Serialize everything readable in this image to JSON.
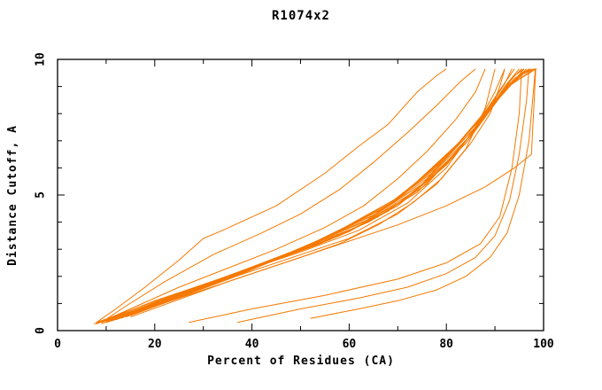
{
  "chart": {
    "title": "R1074x2"
  },
  "chart_data": {
    "type": "line",
    "title": "R1074x2",
    "xlabel": "Percent of Residues (CA)",
    "ylabel": "Distance Cutoff, A",
    "xlim": [
      0,
      100
    ],
    "ylim": [
      0,
      10
    ],
    "x_ticks_major": [
      0,
      20,
      40,
      60,
      80,
      100
    ],
    "x_ticks_minor": [
      10,
      30,
      50,
      70,
      90
    ],
    "y_ticks_major": [
      0,
      5,
      10
    ],
    "y_ticks_minor": [
      1,
      2,
      3,
      4,
      6,
      7,
      8,
      9
    ],
    "grid": false,
    "legend": "none",
    "line_color": "#f57900",
    "axis_color": "#000000",
    "series": [
      {
        "points": [
          [
            8,
            0.3
          ],
          [
            12,
            0.8
          ],
          [
            18,
            1.6
          ],
          [
            25,
            2.6
          ],
          [
            30,
            3.4
          ],
          [
            34,
            3.7
          ],
          [
            45,
            4.6
          ],
          [
            55,
            5.8
          ],
          [
            62,
            6.8
          ],
          [
            68,
            7.6
          ],
          [
            74,
            8.8
          ],
          [
            78,
            9.4
          ],
          [
            80,
            9.65
          ]
        ]
      },
      {
        "points": [
          [
            9,
            0.3
          ],
          [
            14,
            0.9
          ],
          [
            22,
            1.8
          ],
          [
            32,
            2.8
          ],
          [
            42,
            3.6
          ],
          [
            50,
            4.3
          ],
          [
            58,
            5.2
          ],
          [
            65,
            6.2
          ],
          [
            72,
            7.3
          ],
          [
            78,
            8.3
          ],
          [
            83,
            9.2
          ],
          [
            86,
            9.65
          ]
        ]
      },
      {
        "points": [
          [
            8,
            0.25
          ],
          [
            15,
            0.8
          ],
          [
            25,
            1.6
          ],
          [
            35,
            2.3
          ],
          [
            45,
            3.0
          ],
          [
            55,
            3.8
          ],
          [
            63,
            4.6
          ],
          [
            70,
            5.6
          ],
          [
            76,
            6.6
          ],
          [
            82,
            7.8
          ],
          [
            86,
            8.8
          ],
          [
            88,
            9.65
          ]
        ]
      },
      {
        "points": [
          [
            7.5,
            0.25
          ],
          [
            20,
            1.0
          ],
          [
            35,
            1.9
          ],
          [
            50,
            2.8
          ],
          [
            60,
            3.4
          ],
          [
            70,
            4.3
          ],
          [
            78,
            5.4
          ],
          [
            84,
            6.7
          ],
          [
            88,
            8.2
          ],
          [
            90,
            9.65
          ]
        ]
      },
      {
        "points": [
          [
            8,
            0.25
          ],
          [
            20,
            1.1
          ],
          [
            35,
            2.0
          ],
          [
            50,
            2.9
          ],
          [
            62,
            3.7
          ],
          [
            72,
            4.7
          ],
          [
            80,
            6.0
          ],
          [
            86,
            7.5
          ],
          [
            90,
            8.8
          ],
          [
            92,
            9.65
          ]
        ]
      },
      {
        "points": [
          [
            8,
            0.3
          ],
          [
            22,
            1.2
          ],
          [
            38,
            2.2
          ],
          [
            52,
            3.1
          ],
          [
            64,
            4.0
          ],
          [
            74,
            5.1
          ],
          [
            82,
            6.5
          ],
          [
            88,
            8.0
          ],
          [
            92,
            9.1
          ],
          [
            93.5,
            9.65
          ]
        ]
      },
      {
        "points": [
          [
            9,
            0.3
          ],
          [
            24,
            1.3
          ],
          [
            40,
            2.3
          ],
          [
            54,
            3.2
          ],
          [
            66,
            4.2
          ],
          [
            76,
            5.4
          ],
          [
            84,
            7.0
          ],
          [
            90,
            8.6
          ],
          [
            94,
            9.65
          ]
        ]
      },
      {
        "points": [
          [
            9,
            0.25
          ],
          [
            25,
            1.35
          ],
          [
            42,
            2.45
          ],
          [
            56,
            3.35
          ],
          [
            68,
            4.4
          ],
          [
            78,
            5.8
          ],
          [
            86,
            7.4
          ],
          [
            92,
            9.0
          ],
          [
            95,
            9.65
          ]
        ]
      },
      {
        "points": [
          [
            10,
            0.3
          ],
          [
            26,
            1.4
          ],
          [
            44,
            2.55
          ],
          [
            58,
            3.5
          ],
          [
            70,
            4.6
          ],
          [
            80,
            6.1
          ],
          [
            88,
            7.9
          ],
          [
            93,
            9.2
          ],
          [
            95.5,
            9.65
          ]
        ]
      },
      {
        "points": [
          [
            10,
            0.35
          ],
          [
            27,
            1.5
          ],
          [
            45,
            2.65
          ],
          [
            60,
            3.65
          ],
          [
            72,
            4.9
          ],
          [
            82,
            6.5
          ],
          [
            89,
            8.2
          ],
          [
            94,
            9.4
          ],
          [
            96,
            9.65
          ]
        ]
      },
      {
        "points": [
          [
            11,
            0.35
          ],
          [
            28,
            1.55
          ],
          [
            46,
            2.75
          ],
          [
            62,
            3.85
          ],
          [
            74,
            5.2
          ],
          [
            84,
            6.9
          ],
          [
            91,
            8.6
          ],
          [
            96,
            9.65
          ]
        ]
      },
      {
        "points": [
          [
            11,
            0.4
          ],
          [
            29,
            1.6
          ],
          [
            47,
            2.8
          ],
          [
            63,
            4.0
          ],
          [
            75,
            5.4
          ],
          [
            85,
            7.2
          ],
          [
            92,
            8.9
          ],
          [
            96.5,
            9.65
          ]
        ]
      },
      {
        "points": [
          [
            12,
            0.4
          ],
          [
            30,
            1.65
          ],
          [
            48,
            2.9
          ],
          [
            64,
            4.1
          ],
          [
            76,
            5.6
          ],
          [
            86,
            7.5
          ],
          [
            93,
            9.1
          ],
          [
            97,
            9.65
          ]
        ]
      },
      {
        "points": [
          [
            12,
            0.45
          ],
          [
            31,
            1.7
          ],
          [
            49,
            2.95
          ],
          [
            65,
            4.25
          ],
          [
            77,
            5.8
          ],
          [
            87,
            7.7
          ],
          [
            94,
            9.3
          ],
          [
            97.5,
            9.65
          ]
        ]
      },
      {
        "points": [
          [
            13,
            0.45
          ],
          [
            32,
            1.75
          ],
          [
            50,
            3.0
          ],
          [
            66,
            4.35
          ],
          [
            78,
            6.0
          ],
          [
            88,
            8.0
          ],
          [
            95,
            9.4
          ],
          [
            98,
            9.65
          ]
        ]
      },
      {
        "points": [
          [
            13,
            0.5
          ],
          [
            33,
            1.8
          ],
          [
            51,
            3.1
          ],
          [
            67,
            4.5
          ],
          [
            79,
            6.2
          ],
          [
            89,
            8.2
          ],
          [
            95.5,
            9.5
          ],
          [
            98.3,
            9.65
          ]
        ]
      },
      {
        "points": [
          [
            14,
            0.5
          ],
          [
            34,
            1.85
          ],
          [
            52,
            3.15
          ],
          [
            68,
            4.6
          ],
          [
            80,
            6.4
          ],
          [
            90,
            8.5
          ],
          [
            96,
            9.55
          ],
          [
            98.6,
            9.65
          ]
        ]
      },
      {
        "points": [
          [
            14,
            0.55
          ],
          [
            35,
            1.9
          ],
          [
            53,
            3.2
          ],
          [
            69,
            4.7
          ],
          [
            81,
            6.6
          ],
          [
            91,
            8.7
          ],
          [
            97,
            9.65
          ]
        ]
      },
      {
        "points": [
          [
            15,
            0.55
          ],
          [
            36,
            1.95
          ],
          [
            54,
            3.3
          ],
          [
            70,
            4.85
          ],
          [
            82,
            6.8
          ],
          [
            92,
            8.9
          ],
          [
            98,
            9.65
          ]
        ]
      },
      {
        "points": [
          [
            15,
            0.6
          ],
          [
            36,
            2.0
          ],
          [
            55,
            3.4
          ],
          [
            71,
            5.0
          ],
          [
            83,
            7.0
          ],
          [
            92.5,
            9.0
          ],
          [
            98.5,
            9.65
          ]
        ]
      },
      {
        "points": [
          [
            15,
            0.5
          ],
          [
            35,
            1.8
          ],
          [
            55,
            3.0
          ],
          [
            70,
            3.9
          ],
          [
            80,
            4.6
          ],
          [
            88,
            5.3
          ],
          [
            94,
            6.0
          ],
          [
            97.5,
            6.5
          ],
          [
            98.4,
            9.65
          ]
        ]
      },
      {
        "points": [
          [
            27,
            0.3
          ],
          [
            40,
            0.8
          ],
          [
            55,
            1.3
          ],
          [
            70,
            1.9
          ],
          [
            80,
            2.5
          ],
          [
            87,
            3.2
          ],
          [
            91,
            4.2
          ],
          [
            93.5,
            6.0
          ],
          [
            95,
            8.0
          ],
          [
            95.5,
            9.65
          ]
        ]
      },
      {
        "points": [
          [
            37,
            0.3
          ],
          [
            50,
            0.8
          ],
          [
            62,
            1.2
          ],
          [
            72,
            1.6
          ],
          [
            80,
            2.1
          ],
          [
            86,
            2.7
          ],
          [
            90,
            3.5
          ],
          [
            93,
            4.8
          ],
          [
            95,
            6.5
          ],
          [
            96.5,
            8.5
          ],
          [
            97,
            9.65
          ]
        ]
      },
      {
        "points": [
          [
            52,
            0.45
          ],
          [
            62,
            0.8
          ],
          [
            70,
            1.1
          ],
          [
            78,
            1.5
          ],
          [
            84,
            2.0
          ],
          [
            89,
            2.7
          ],
          [
            92.5,
            3.6
          ],
          [
            95,
            5.0
          ],
          [
            97,
            7.0
          ],
          [
            98,
            9.0
          ],
          [
            98.3,
            9.65
          ]
        ]
      },
      {
        "points": [
          [
            10,
            0.3
          ],
          [
            20,
            0.9
          ],
          [
            30,
            1.5
          ],
          [
            40,
            2.1
          ],
          [
            50,
            2.7
          ],
          [
            58,
            3.2
          ],
          [
            66,
            3.9
          ],
          [
            73,
            4.7
          ],
          [
            79,
            5.6
          ],
          [
            85,
            6.9
          ],
          [
            89,
            8.0
          ],
          [
            91,
            9.0
          ],
          [
            92,
            9.65
          ]
        ]
      }
    ]
  }
}
